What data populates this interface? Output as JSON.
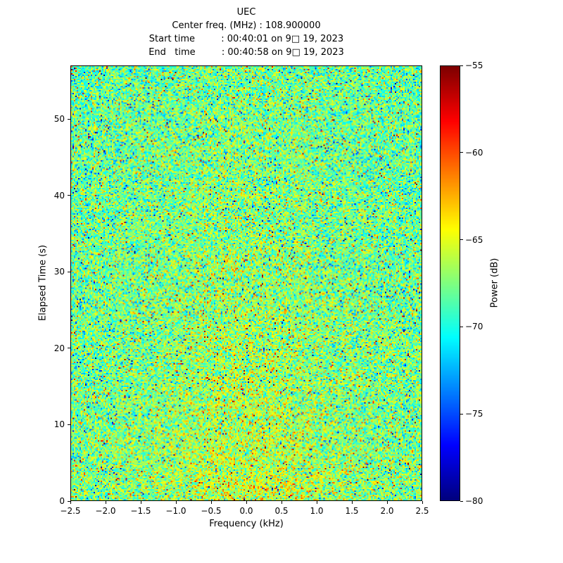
{
  "figure": {
    "background": "#ffffff",
    "frame_color": "#000000"
  },
  "chart_data": {
    "type": "heatmap",
    "title": "UEC",
    "header_lines": [
      "Center freq. (MHz) : 108.900000",
      "Start time         : 00:40:01 on 9□ 19, 2023",
      "End   time         : 00:40:58 on 9□ 19, 2023"
    ],
    "xlabel": "Frequency (kHz)",
    "ylabel": "Elapsed Time (s)",
    "xlim": [
      -2.5,
      2.5
    ],
    "ylim": [
      0,
      57
    ],
    "grid": false,
    "x_ticks": [
      {
        "v": -2.5,
        "label": "−2.5"
      },
      {
        "v": -2.0,
        "label": "−2.0"
      },
      {
        "v": -1.5,
        "label": "−1.5"
      },
      {
        "v": -1.0,
        "label": "−1.0"
      },
      {
        "v": -0.5,
        "label": "−0.5"
      },
      {
        "v": 0.0,
        "label": "0.0"
      },
      {
        "v": 0.5,
        "label": "0.5"
      },
      {
        "v": 1.0,
        "label": "1.0"
      },
      {
        "v": 1.5,
        "label": "1.5"
      },
      {
        "v": 2.0,
        "label": "2.0"
      },
      {
        "v": 2.5,
        "label": "2.5"
      }
    ],
    "y_ticks": [
      {
        "v": 0,
        "label": "0"
      },
      {
        "v": 10,
        "label": "10"
      },
      {
        "v": 20,
        "label": "20"
      },
      {
        "v": 30,
        "label": "30"
      },
      {
        "v": 40,
        "label": "40"
      },
      {
        "v": 50,
        "label": "50"
      }
    ],
    "colorbar": {
      "label": "Power (dB)",
      "min": -80,
      "max": -55,
      "colormap": "jet",
      "ticks": [
        {
          "v": -55,
          "label": "−55"
        },
        {
          "v": -60,
          "label": "−60"
        },
        {
          "v": -65,
          "label": "−65"
        },
        {
          "v": -70,
          "label": "−70"
        },
        {
          "v": -75,
          "label": "−75"
        },
        {
          "v": -80,
          "label": "−80"
        }
      ]
    },
    "noise": {
      "description": "random RF noise floor, jet colormap",
      "mean_db": -68.3,
      "std_db": 2.6,
      "seed": 7,
      "cols": 250,
      "rows": 310,
      "spike_prob": 0.012,
      "spike_db": 5.5,
      "center_bias_db": 2.2
    }
  }
}
